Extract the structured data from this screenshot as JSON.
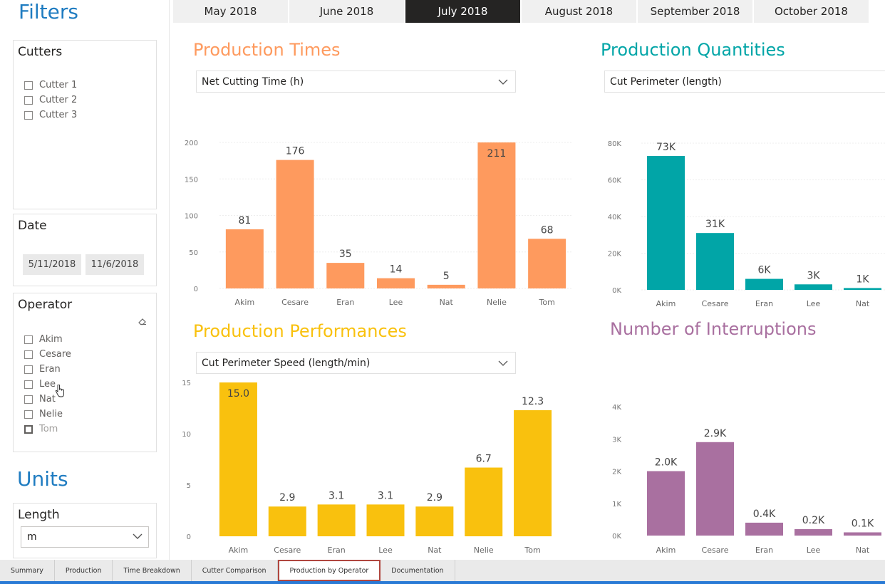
{
  "filters": {
    "title": "Filters",
    "cutters": {
      "title": "Cutters",
      "items": [
        "Cutter 1",
        "Cutter 2",
        "Cutter 3"
      ]
    },
    "date": {
      "title": "Date",
      "start": "5/11/2018",
      "end": "11/6/2018"
    },
    "operator": {
      "title": "Operator",
      "items": [
        "Akim",
        "Cesare",
        "Eran",
        "Lee",
        "Nat",
        "Nelie",
        "Tom"
      ]
    }
  },
  "units": {
    "title": "Units",
    "length": {
      "title": "Length",
      "value": "m"
    }
  },
  "months": [
    "May 2018",
    "June 2018",
    "July 2018",
    "August 2018",
    "September 2018",
    "October 2018"
  ],
  "active_month": "July 2018",
  "pages": [
    "Summary",
    "Production",
    "Time Breakdown",
    "Cutter Comparison",
    "Production by Operator",
    "Documentation"
  ],
  "active_page": "Production by Operator",
  "colors": {
    "times": "#fe9a5e",
    "quantities": "#01a5a7",
    "performances": "#f9c10e",
    "interruptions": "#a970a0",
    "accent": "#1f7cc1"
  },
  "visuals": {
    "times": {
      "title": "Production Times",
      "selector": "Net Cutting Time (h)"
    },
    "quantities": {
      "title": "Production Quantities",
      "selector": "Cut Perimeter (length)"
    },
    "performances": {
      "title": "Production Performances",
      "selector": "Cut Perimeter Speed (length/min)"
    },
    "interruptions": {
      "title": "Number of Interruptions"
    }
  },
  "chart_data": [
    {
      "id": "times",
      "type": "bar",
      "categories": [
        "Akim",
        "Cesare",
        "Eran",
        "Lee",
        "Nat",
        "Nelie",
        "Tom"
      ],
      "values": [
        81,
        176,
        35,
        14,
        5,
        211,
        68
      ],
      "labels": [
        "81",
        "176",
        "35",
        "14",
        "5",
        "211",
        "68"
      ],
      "ylim": [
        0,
        200
      ],
      "yticks": [
        0,
        50,
        100,
        150,
        200
      ],
      "ytick_labels": [
        "0",
        "50",
        "100",
        "150",
        "200"
      ],
      "grid": true,
      "color": "#fe9a5e"
    },
    {
      "id": "quantities",
      "type": "bar",
      "categories": [
        "Akim",
        "Cesare",
        "Eran",
        "Lee",
        "Nat"
      ],
      "values": [
        73000,
        31000,
        6000,
        3000,
        1000
      ],
      "labels": [
        "73K",
        "31K",
        "6K",
        "3K",
        "1K"
      ],
      "ylim": [
        0,
        80000
      ],
      "yticks": [
        0,
        20000,
        40000,
        60000,
        80000
      ],
      "ytick_labels": [
        "0K",
        "20K",
        "40K",
        "60K",
        "80K"
      ],
      "grid": true,
      "color": "#01a5a7"
    },
    {
      "id": "performances",
      "type": "bar",
      "categories": [
        "Akim",
        "Cesare",
        "Eran",
        "Lee",
        "Nat",
        "Nelie",
        "Tom"
      ],
      "values": [
        15.0,
        2.9,
        3.1,
        3.1,
        2.9,
        6.7,
        12.3
      ],
      "labels": [
        "15.0",
        "2.9",
        "3.1",
        "3.1",
        "2.9",
        "6.7",
        "12.3"
      ],
      "ylim": [
        0,
        15
      ],
      "yticks": [
        0,
        5,
        10,
        15
      ],
      "ytick_labels": [
        "0",
        "5",
        "10",
        "15"
      ],
      "grid": false,
      "color": "#f9c10e"
    },
    {
      "id": "interruptions",
      "type": "bar",
      "categories": [
        "Akim",
        "Cesare",
        "Eran",
        "Lee",
        "Nat"
      ],
      "values": [
        2000,
        2900,
        400,
        200,
        100
      ],
      "labels": [
        "2.0K",
        "2.9K",
        "0.4K",
        "0.2K",
        "0.1K"
      ],
      "ylim": [
        0,
        4000
      ],
      "yticks": [
        0,
        1000,
        2000,
        3000,
        4000
      ],
      "ytick_labels": [
        "0K",
        "1K",
        "2K",
        "3K",
        "4K"
      ],
      "grid": false,
      "color": "#a970a0"
    }
  ]
}
